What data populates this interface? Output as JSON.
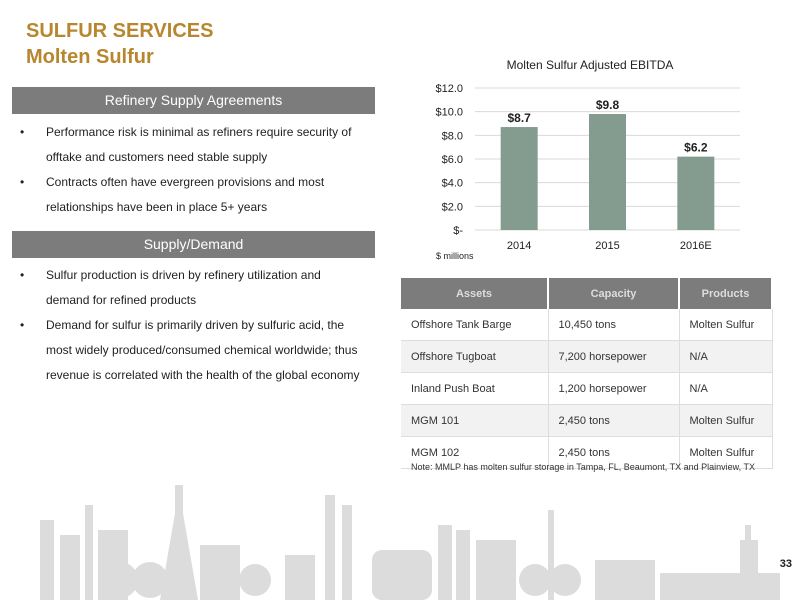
{
  "header": {
    "line1": "SULFUR SERVICES",
    "line2": "Molten Sulfur"
  },
  "sections": [
    {
      "title": "Refinery Supply Agreements",
      "bullets": [
        "Performance risk is minimal as refiners require security of",
        "offtake and customers need stable supply",
        "Contracts often have evergreen provisions and most",
        "relationships have been in place 5+ years"
      ]
    },
    {
      "title": "Supply/Demand",
      "bullets": [
        "Sulfur production is driven by refinery utilization and",
        "demand for refined products",
        "Demand for sulfur is primarily driven by sulfuric acid, the",
        "most widely produced/consumed chemical worldwide; thus",
        "revenue is correlated with the health of the global economy"
      ]
    }
  ],
  "chart_data": {
    "type": "bar",
    "title": "Molten Sulfur Adjusted EBITDA",
    "categories": [
      "2014",
      "2015",
      "2016E"
    ],
    "values": [
      8.7,
      9.8,
      6.2
    ],
    "value_labels": [
      "$8.7",
      "$9.8",
      "$6.2"
    ],
    "ylim": [
      0,
      12
    ],
    "yticks": [
      0,
      2,
      4,
      6,
      8,
      10,
      12
    ],
    "ytick_labels": [
      "$-",
      "$2.0",
      "$4.0",
      "$6.0",
      "$8.0",
      "$10.0",
      "$12.0"
    ],
    "unit_label": "$ millions",
    "bar_color": "#849b8f",
    "grid": true
  },
  "assets_table": {
    "columns": [
      "Assets",
      "Capacity",
      "Products"
    ],
    "rows": [
      [
        "Offshore Tank Barge",
        "10,450 tons",
        "Molten Sulfur"
      ],
      [
        "Offshore Tugboat",
        "7,200 horsepower",
        "N/A"
      ],
      [
        "Inland Push Boat",
        "1,200 horsepower",
        "N/A"
      ],
      [
        "MGM 101",
        "2,450 tons",
        "Molten Sulfur"
      ],
      [
        "MGM 102",
        "2,450 tons",
        "Molten Sulfur"
      ]
    ]
  },
  "note": "Note: MMLP has molten sulfur storage in Tampa, FL, Beaumont, TX and Plainview, TX",
  "page_number": "33",
  "colors": {
    "accent": "#b8862e",
    "bar_header": "#7c7c7c",
    "skyline": "#dcdcdc"
  }
}
